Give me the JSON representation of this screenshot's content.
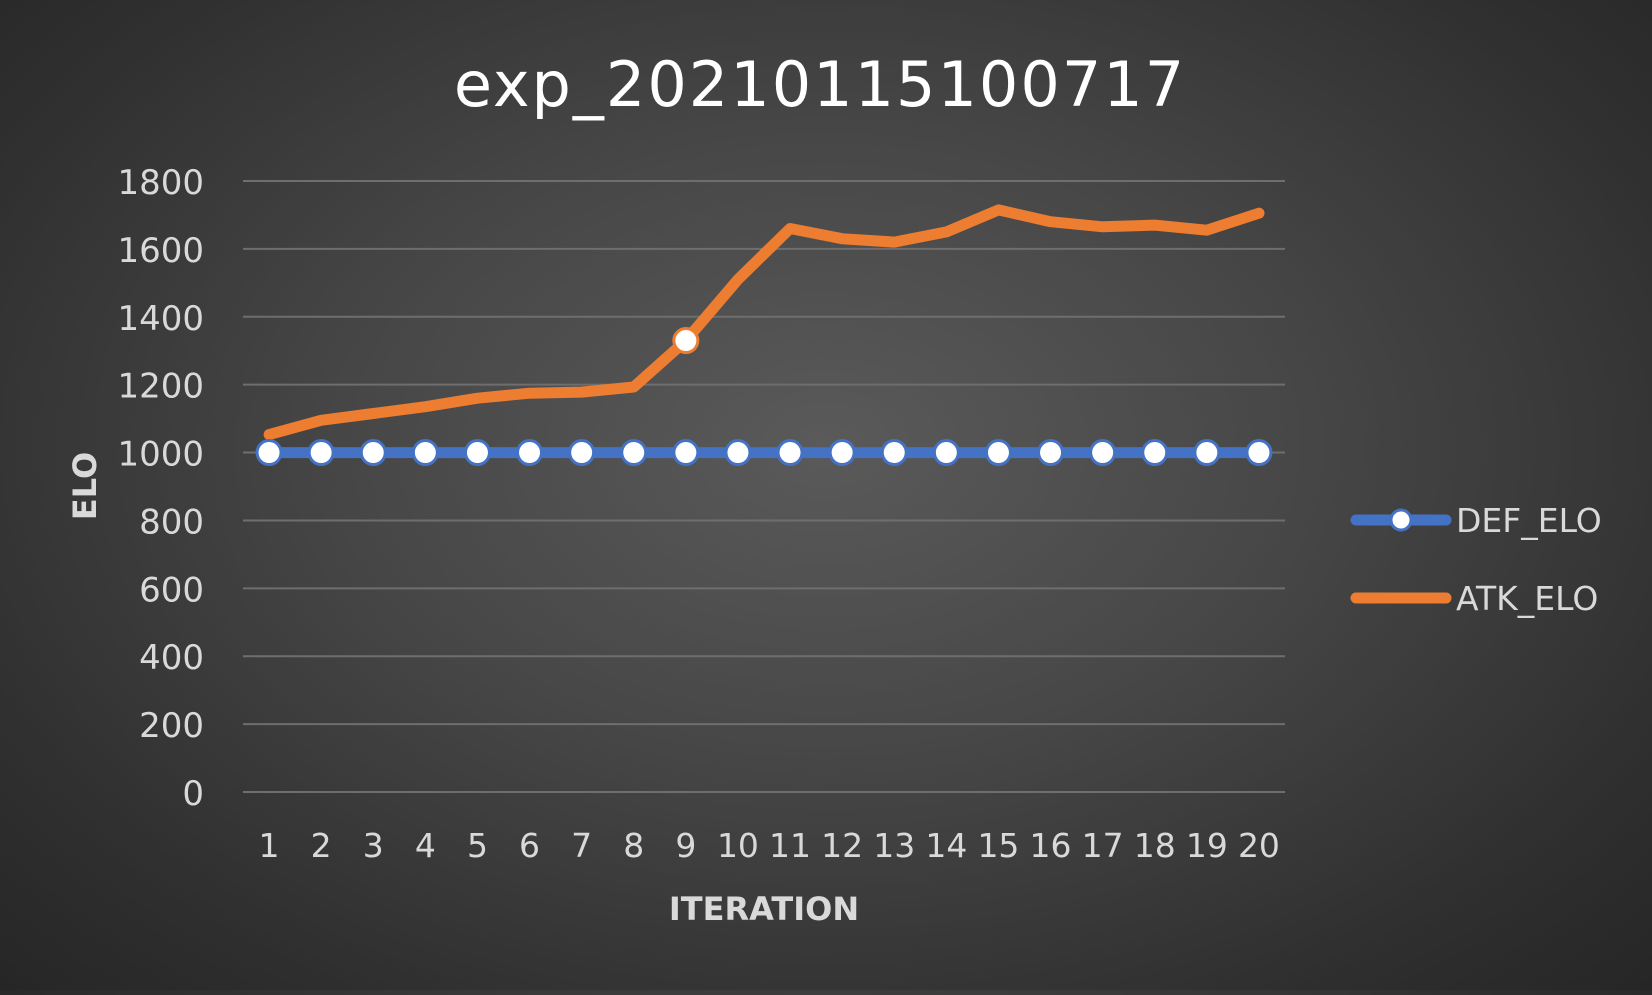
{
  "chart_data": {
    "type": "line",
    "title": "exp_20210115100717",
    "xlabel": "ITERATION",
    "ylabel": "ELO",
    "categories": [
      "1",
      "2",
      "3",
      "4",
      "5",
      "6",
      "7",
      "8",
      "9",
      "10",
      "11",
      "12",
      "13",
      "14",
      "15",
      "16",
      "17",
      "18",
      "19",
      "20"
    ],
    "ylim": [
      0,
      1800
    ],
    "yticks": [
      "0",
      "200",
      "400",
      "600",
      "800",
      "1000",
      "1200",
      "1400",
      "1600",
      "1800"
    ],
    "grid": true,
    "legend_position": "right",
    "series": [
      {
        "name": "DEF_ELO",
        "color": "#4472C4",
        "marker": "circle",
        "values": [
          1000,
          1000,
          1000,
          1000,
          1000,
          1000,
          1000,
          1000,
          1000,
          1000,
          1000,
          1000,
          1000,
          1000,
          1000,
          1000,
          1000,
          1000,
          1000,
          1000
        ]
      },
      {
        "name": "ATK_ELO",
        "color": "#ED7D31",
        "marker": "none",
        "highlighted_point_index": 8,
        "values": [
          1053,
          1095,
          1115,
          1135,
          1160,
          1175,
          1178,
          1193,
          1330,
          1510,
          1660,
          1630,
          1620,
          1650,
          1715,
          1680,
          1665,
          1670,
          1655,
          1705
        ]
      }
    ]
  }
}
